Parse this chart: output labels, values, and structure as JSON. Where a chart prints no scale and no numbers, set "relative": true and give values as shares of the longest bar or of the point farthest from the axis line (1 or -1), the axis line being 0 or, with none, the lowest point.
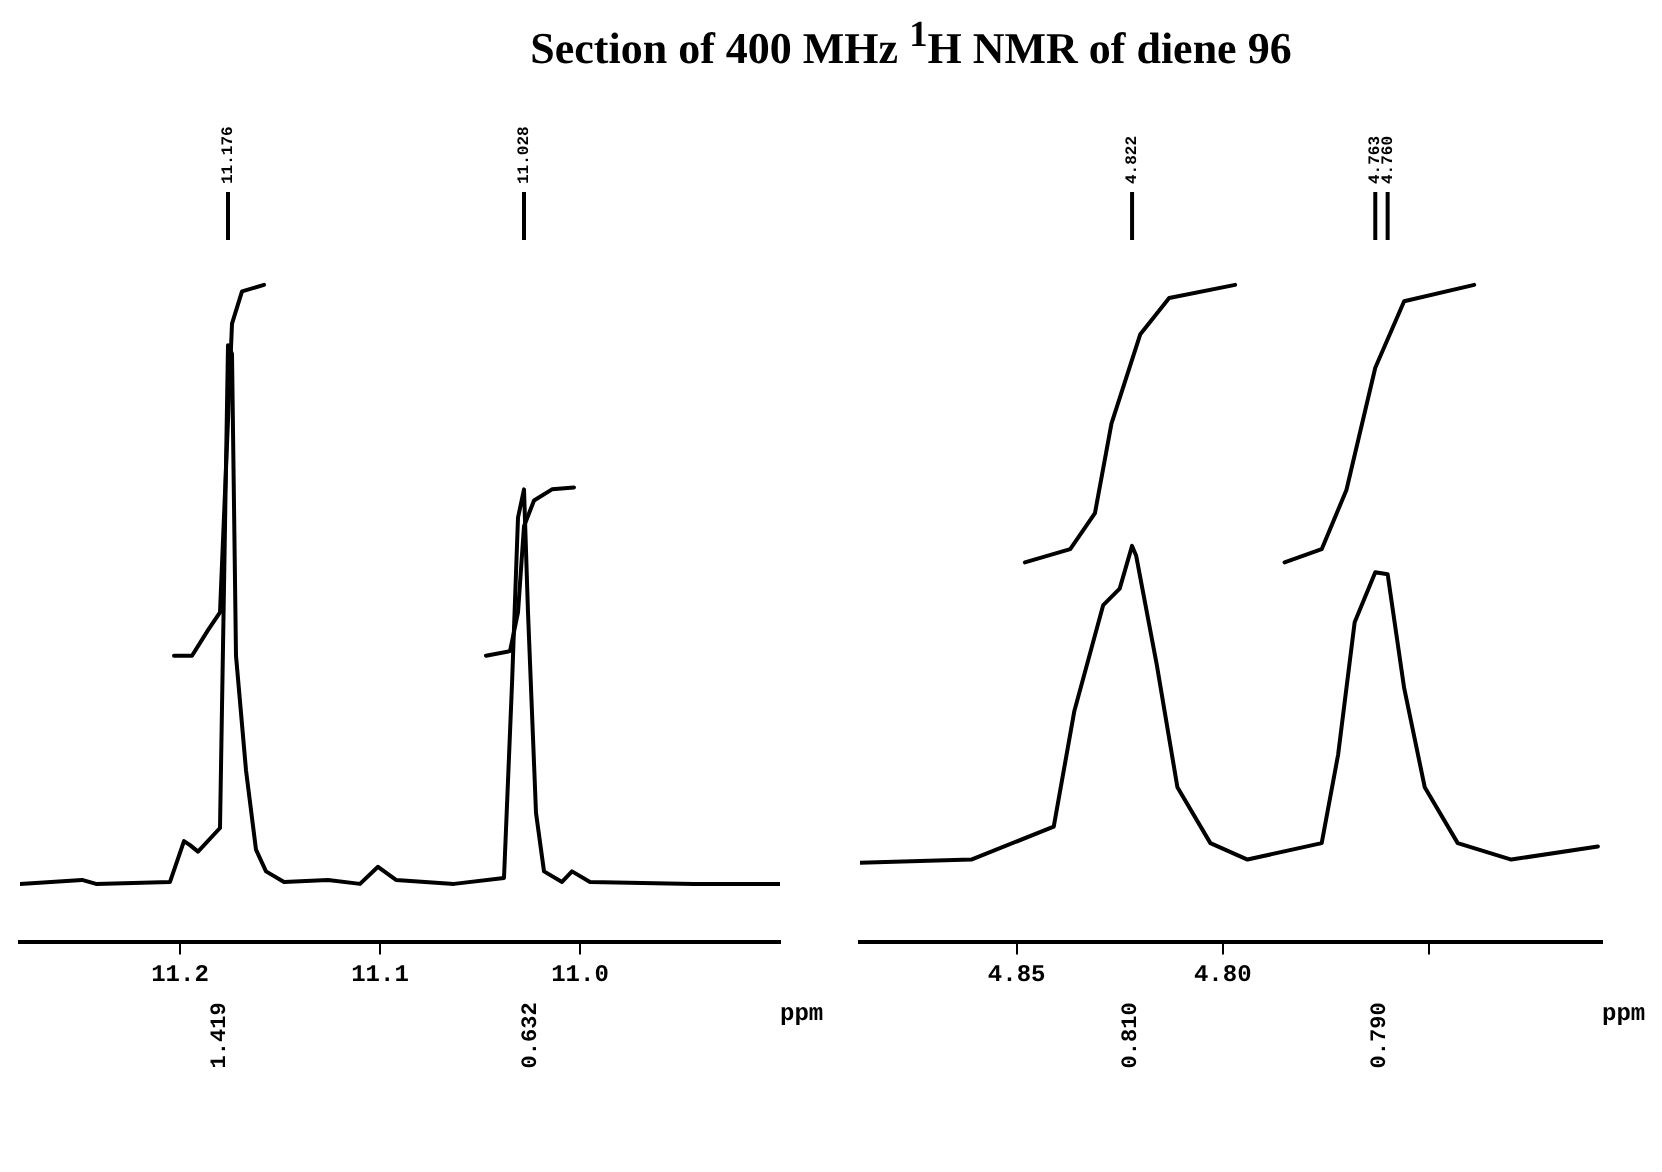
{
  "chart_data": [
    {
      "type": "line",
      "title": "Section of 400 MHz $^{1}$H NMR of diene 96",
      "relative": true,
      "xlabel": "ppm",
      "xlim": [
        11.28,
        10.9
      ],
      "xticks": [
        11.2,
        11.1,
        {
          "value": 11,
          "label": "11.0"
        }
      ],
      "series": [
        {
          "color": "#000000",
          "x": [
            11.28,
            11.249,
            11.242,
            11.205,
            11.198,
            11.195,
            11.191,
            11.18,
            11.176,
            11.174,
            11.172,
            11.167,
            11.162,
            11.157,
            11.148,
            11.126,
            11.11,
            11.101,
            11.092,
            11.063,
            11.038,
            11.034,
            11.031,
            11.028,
            11.026,
            11.022,
            11.018,
            11.009,
            11.004,
            10.995,
            10.943,
            10.9
          ],
          "values": [
            0.089,
            0.095,
            0.089,
            0.092,
            0.154,
            0.148,
            0.138,
            0.174,
            0.908,
            0.895,
            0.436,
            0.262,
            0.141,
            0.108,
            0.092,
            0.095,
            0.089,
            0.115,
            0.095,
            0.089,
            0.098,
            0.393,
            0.646,
            0.689,
            0.502,
            0.197,
            0.108,
            0.092,
            0.108,
            0.092,
            0.089,
            0.089
          ]
        },
        {
          "color": "#000000",
          "x": [
            11.203,
            11.194,
            11.186,
            11.18,
            11.177,
            11.174,
            11.169,
            11.158
          ],
          "values": [
            0.436,
            0.436,
            0.475,
            0.502,
            0.721,
            0.941,
            0.99,
            1.0
          ]
        },
        {
          "color": "#000000",
          "x": [
            11.047,
            11.035,
            11.031,
            11.028,
            11.023,
            11.014,
            11.003
          ],
          "values": [
            0.436,
            0.443,
            0.502,
            0.633,
            0.672,
            0.689,
            0.692
          ]
        }
      ],
      "x2lim": [
        11.28,
        10.9
      ],
      "x2ticks": [
        {
          "value": 11.176,
          "label": "11.176"
        },
        {
          "value": 11.028,
          "label": "11.028"
        }
      ],
      "annotations": [
        "1.419",
        "0.632"
      ]
    },
    {
      "type": "line",
      "relative": true,
      "xlabel": "ppm",
      "xlim": [
        4.888,
        4.708
      ],
      "xticks": [
        4.85,
        {
          "value": 4.8,
          "label": "4.80"
        },
        {
          "value": 4.75,
          "label": null
        }
      ],
      "series": [
        {
          "color": "#000000",
          "x": [
            4.888,
            4.861,
            4.841,
            4.836,
            4.829,
            4.825,
            4.822,
            4.821,
            4.816,
            4.811,
            4.803,
            4.794,
            4.776,
            4.772,
            4.768,
            4.763,
            4.76,
            4.756,
            4.751,
            4.743,
            4.73,
            4.709
          ],
          "values": [
            0.121,
            0.126,
            0.176,
            0.352,
            0.513,
            0.538,
            0.603,
            0.588,
            0.422,
            0.236,
            0.151,
            0.126,
            0.151,
            0.286,
            0.487,
            0.563,
            0.56,
            0.387,
            0.236,
            0.151,
            0.126,
            0.146
          ]
        },
        {
          "color": "#000000",
          "x": [
            4.848,
            4.837,
            4.831,
            4.827,
            4.82,
            4.813,
            4.797
          ],
          "values": [
            0.578,
            0.598,
            0.653,
            0.789,
            0.925,
            0.98,
            1.0
          ]
        },
        {
          "color": "#000000",
          "x": [
            4.785,
            4.776,
            4.77,
            4.763,
            4.756,
            4.739
          ],
          "values": [
            0.578,
            0.598,
            0.688,
            0.874,
            0.975,
            1.0
          ]
        }
      ],
      "x2lim": [
        4.888,
        4.708
      ],
      "x2ticks": [
        {
          "value": 4.822,
          "label": "4.822"
        },
        {
          "value": 4.763,
          "label": "4.763"
        },
        {
          "value": 4.76,
          "label": "4.760"
        }
      ],
      "annotations": [
        "0.810",
        "0.790"
      ]
    }
  ]
}
